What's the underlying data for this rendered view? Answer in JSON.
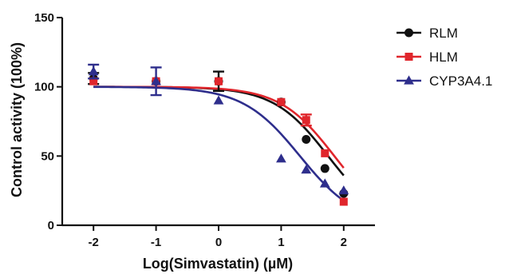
{
  "chart_data": {
    "type": "scatter",
    "title": "",
    "xlabel": "Log(Simvastatin) (µM)",
    "ylabel": "Control activity (100%)",
    "xlim": [
      -2.5,
      2.5
    ],
    "ylim": [
      0,
      150
    ],
    "xticks": [
      -2,
      -1,
      0,
      1,
      2
    ],
    "yticks": [
      0,
      50,
      100,
      150
    ],
    "grid": false,
    "legend_position": "top-right",
    "series": [
      {
        "name": "RLM",
        "color": "#111111",
        "marker": "circle",
        "points": [
          {
            "x": -2,
            "y": 106,
            "err": 4
          },
          {
            "x": -1,
            "y": 104,
            "err": 0
          },
          {
            "x": 0,
            "y": 104,
            "err": 7
          },
          {
            "x": 1,
            "y": 89,
            "err": 0
          },
          {
            "x": 1.4,
            "y": 62,
            "err": 0
          },
          {
            "x": 1.7,
            "y": 41,
            "err": 0
          },
          {
            "x": 2,
            "y": 23,
            "err": 0
          }
        ],
        "fit": {
          "top": 100,
          "bottom": 0,
          "logIC50": 1.75,
          "hill": 1.0
        }
      },
      {
        "name": "HLM",
        "color": "#e0262c",
        "marker": "square",
        "points": [
          {
            "x": -2,
            "y": 104,
            "err": 0
          },
          {
            "x": -1,
            "y": 104,
            "err": 0
          },
          {
            "x": 0,
            "y": 104,
            "err": 0
          },
          {
            "x": 1,
            "y": 89,
            "err": 0
          },
          {
            "x": 1.4,
            "y": 76,
            "err": 4
          },
          {
            "x": 1.7,
            "y": 52,
            "err": 0
          },
          {
            "x": 2,
            "y": 17,
            "err": 0
          }
        ],
        "fit": {
          "top": 100,
          "bottom": 0,
          "logIC50": 1.85,
          "hill": 1.0
        }
      },
      {
        "name": "CYP3A4.1",
        "color": "#2e2e8c",
        "marker": "triangle",
        "points": [
          {
            "x": -2,
            "y": 111,
            "err": 5
          },
          {
            "x": -1,
            "y": 104,
            "err": 10
          },
          {
            "x": 0,
            "y": 90,
            "err": 0
          },
          {
            "x": 1,
            "y": 48,
            "err": 0
          },
          {
            "x": 1.4,
            "y": 40,
            "err": 0
          },
          {
            "x": 1.7,
            "y": 30,
            "err": 0
          },
          {
            "x": 2,
            "y": 25,
            "err": 0
          }
        ],
        "fit": {
          "top": 100,
          "bottom": 0,
          "logIC50": 1.3,
          "hill": 0.95
        }
      }
    ]
  }
}
